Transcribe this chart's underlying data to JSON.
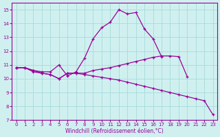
{
  "xlabel": "Windchill (Refroidissement éolien,°C)",
  "x_values": [
    0,
    1,
    2,
    3,
    4,
    5,
    6,
    7,
    8,
    9,
    10,
    11,
    12,
    13,
    14,
    15,
    16,
    17,
    18,
    19,
    20,
    21,
    22,
    23
  ],
  "line1_y": [
    10.8,
    10.8,
    10.6,
    10.5,
    10.5,
    11.0,
    10.2,
    10.5,
    11.5,
    12.9,
    13.7,
    14.1,
    15.0,
    14.7,
    14.8,
    13.6,
    12.9,
    11.6,
    null,
    null,
    null,
    null,
    null,
    null
  ],
  "line2_y": [
    10.8,
    10.8,
    10.6,
    10.4,
    10.3,
    10.0,
    10.4,
    10.4,
    10.4,
    10.6,
    10.7,
    10.8,
    10.95,
    11.1,
    11.25,
    11.4,
    11.55,
    11.65,
    11.65,
    11.6,
    10.15,
    null,
    null,
    null
  ],
  "line3_y": [
    10.8,
    10.8,
    10.5,
    10.4,
    10.3,
    10.0,
    10.4,
    10.4,
    10.3,
    10.2,
    10.1,
    10.0,
    9.9,
    9.75,
    9.6,
    9.45,
    9.3,
    9.15,
    9.0,
    8.85,
    8.7,
    8.55,
    8.4,
    7.4
  ],
  "line_color": "#990099",
  "bg_color": "#d0f0f0",
  "grid_color": "#aadddd",
  "ylim": [
    7,
    15.5
  ],
  "xlim": [
    -0.5,
    23.5
  ],
  "yticks": [
    7,
    8,
    9,
    10,
    11,
    12,
    13,
    14,
    15
  ],
  "xticks": [
    0,
    1,
    2,
    3,
    4,
    5,
    6,
    7,
    8,
    9,
    10,
    11,
    12,
    13,
    14,
    15,
    16,
    17,
    18,
    19,
    20,
    21,
    22,
    23
  ]
}
